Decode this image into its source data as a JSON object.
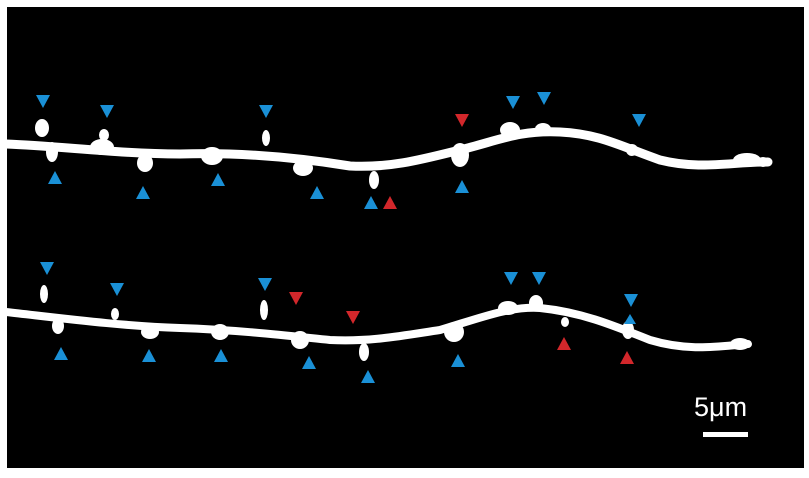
{
  "image": {
    "subject": "two-dendrite-segments-with-spines",
    "background_color": "#000000",
    "frame_color": "#ffffff",
    "dendrite_color": "#ffffff"
  },
  "markers": {
    "colors": {
      "blue": "#1a90d6",
      "red": "#d2272b"
    },
    "dendrite_1": {
      "blue_count": 12,
      "red_count": 2
    },
    "dendrite_2": {
      "blue_count": 13,
      "red_count": 4
    }
  },
  "scale_bar": {
    "label": "5μm",
    "value": 5,
    "unit": "μm"
  }
}
